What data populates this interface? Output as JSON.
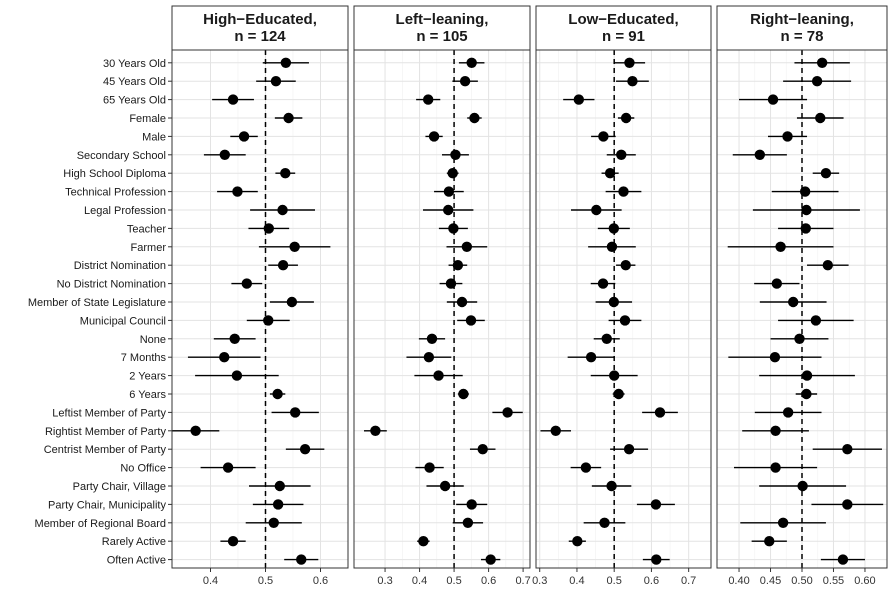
{
  "chart_data": {
    "type": "scatter",
    "style": "dot-and-whisker facets",
    "categories": [
      "30 Years Old",
      "45 Years Old",
      "65 Years Old",
      "Female",
      "Male",
      "Secondary School",
      "High School Diploma",
      "Technical Profession",
      "Legal Profession",
      "Teacher",
      "Farmer",
      "District Nomination",
      "No District Nomination",
      "Member of State Legislature",
      "Municipal Council",
      "None",
      "7 Months",
      "2 Years",
      "6 Years",
      "Leftist Member of Party",
      "Rightist Member of Party",
      "Centrist Member of Party",
      "No Office",
      "Party Chair, Village",
      "Party Chair, Municipality",
      "Member of Regional Board",
      "Rarely Active",
      "Often Active"
    ],
    "reference_line": 0.5,
    "grid": true,
    "panels": [
      {
        "title": "High−Educated,\nn = 124",
        "xlim": [
          0.33,
          0.65
        ],
        "xticks": [
          0.4,
          0.5,
          0.6
        ],
        "xtick_labels": [
          "0.4",
          "0.5",
          "0.6"
        ],
        "estimates": [
          0.537,
          0.519,
          0.441,
          0.542,
          0.461,
          0.426,
          0.536,
          0.449,
          0.531,
          0.506,
          0.553,
          0.532,
          0.466,
          0.548,
          0.505,
          0.444,
          0.425,
          0.448,
          0.522,
          0.554,
          0.373,
          0.572,
          0.432,
          0.526,
          0.523,
          0.515,
          0.441,
          0.565
        ],
        "lower": [
          0.495,
          0.483,
          0.403,
          0.517,
          0.436,
          0.388,
          0.518,
          0.412,
          0.472,
          0.469,
          0.488,
          0.505,
          0.438,
          0.508,
          0.466,
          0.406,
          0.359,
          0.372,
          0.508,
          0.511,
          0.33,
          0.537,
          0.382,
          0.47,
          0.477,
          0.464,
          0.418,
          0.534
        ],
        "upper": [
          0.579,
          0.555,
          0.479,
          0.567,
          0.486,
          0.464,
          0.554,
          0.486,
          0.59,
          0.543,
          0.618,
          0.559,
          0.494,
          0.588,
          0.544,
          0.482,
          0.491,
          0.524,
          0.536,
          0.597,
          0.416,
          0.607,
          0.482,
          0.582,
          0.569,
          0.566,
          0.464,
          0.596
        ]
      },
      {
        "title": "Left−leaning,\nn = 105",
        "xlim": [
          0.21,
          0.72
        ],
        "xticks": [
          0.3,
          0.4,
          0.5,
          0.6,
          0.7
        ],
        "xtick_labels": [
          "0.3",
          "0.4",
          "0.5",
          "0.6",
          "0.7"
        ],
        "estimates": [
          0.551,
          0.532,
          0.425,
          0.559,
          0.442,
          0.504,
          0.496,
          0.485,
          0.483,
          0.498,
          0.537,
          0.511,
          0.491,
          0.523,
          0.549,
          0.436,
          0.427,
          0.455,
          0.527,
          0.655,
          0.272,
          0.583,
          0.429,
          0.474,
          0.551,
          0.54,
          0.411,
          0.606
        ],
        "lower": [
          0.514,
          0.495,
          0.39,
          0.538,
          0.417,
          0.465,
          0.479,
          0.442,
          0.41,
          0.456,
          0.478,
          0.484,
          0.458,
          0.479,
          0.509,
          0.398,
          0.362,
          0.385,
          0.511,
          0.611,
          0.239,
          0.546,
          0.388,
          0.42,
          0.506,
          0.496,
          0.393,
          0.578
        ],
        "upper": [
          0.588,
          0.569,
          0.46,
          0.58,
          0.467,
          0.543,
          0.513,
          0.528,
          0.556,
          0.54,
          0.596,
          0.538,
          0.524,
          0.567,
          0.589,
          0.474,
          0.492,
          0.525,
          0.543,
          0.699,
          0.305,
          0.62,
          0.47,
          0.528,
          0.596,
          0.584,
          0.429,
          0.634
        ]
      },
      {
        "title": "Low−Educated,\nn = 91",
        "xlim": [
          0.29,
          0.76
        ],
        "xticks": [
          0.3,
          0.4,
          0.5,
          0.6,
          0.7
        ],
        "xtick_labels": [
          "0.3",
          "0.4",
          "0.5",
          "0.6",
          "0.7"
        ],
        "estimates": [
          0.541,
          0.549,
          0.405,
          0.532,
          0.471,
          0.519,
          0.489,
          0.525,
          0.452,
          0.499,
          0.494,
          0.531,
          0.47,
          0.499,
          0.529,
          0.48,
          0.438,
          0.5,
          0.512,
          0.623,
          0.343,
          0.54,
          0.424,
          0.493,
          0.612,
          0.474,
          0.401,
          0.613
        ],
        "lower": [
          0.499,
          0.505,
          0.363,
          0.51,
          0.438,
          0.48,
          0.466,
          0.477,
          0.384,
          0.456,
          0.43,
          0.505,
          0.437,
          0.45,
          0.485,
          0.445,
          0.375,
          0.437,
          0.496,
          0.575,
          0.302,
          0.489,
          0.383,
          0.44,
          0.561,
          0.418,
          0.378,
          0.577
        ],
        "upper": [
          0.583,
          0.593,
          0.447,
          0.554,
          0.504,
          0.558,
          0.512,
          0.573,
          0.52,
          0.542,
          0.558,
          0.557,
          0.503,
          0.548,
          0.573,
          0.515,
          0.501,
          0.563,
          0.528,
          0.671,
          0.384,
          0.591,
          0.465,
          0.546,
          0.663,
          0.53,
          0.424,
          0.649
        ]
      },
      {
        "title": "Right−leaning,\nn = 78",
        "xlim": [
          0.365,
          0.635
        ],
        "xticks": [
          0.4,
          0.45,
          0.5,
          0.55,
          0.6
        ],
        "xtick_labels": [
          "0.40",
          "0.45",
          "0.50",
          "0.55",
          "0.60"
        ],
        "estimates": [
          0.532,
          0.524,
          0.454,
          0.529,
          0.477,
          0.433,
          0.538,
          0.505,
          0.507,
          0.506,
          0.466,
          0.541,
          0.46,
          0.486,
          0.522,
          0.496,
          0.457,
          0.508,
          0.507,
          0.478,
          0.458,
          0.572,
          0.458,
          0.501,
          0.572,
          0.47,
          0.448,
          0.565
        ],
        "lower": [
          0.488,
          0.47,
          0.4,
          0.492,
          0.446,
          0.39,
          0.517,
          0.452,
          0.422,
          0.462,
          0.382,
          0.508,
          0.424,
          0.433,
          0.462,
          0.45,
          0.383,
          0.432,
          0.49,
          0.425,
          0.405,
          0.517,
          0.392,
          0.432,
          0.515,
          0.402,
          0.42,
          0.53
        ],
        "upper": [
          0.576,
          0.578,
          0.508,
          0.566,
          0.508,
          0.476,
          0.559,
          0.558,
          0.592,
          0.55,
          0.55,
          0.574,
          0.496,
          0.539,
          0.582,
          0.542,
          0.531,
          0.584,
          0.524,
          0.531,
          0.511,
          0.627,
          0.524,
          0.57,
          0.629,
          0.538,
          0.476,
          0.6
        ]
      }
    ]
  }
}
